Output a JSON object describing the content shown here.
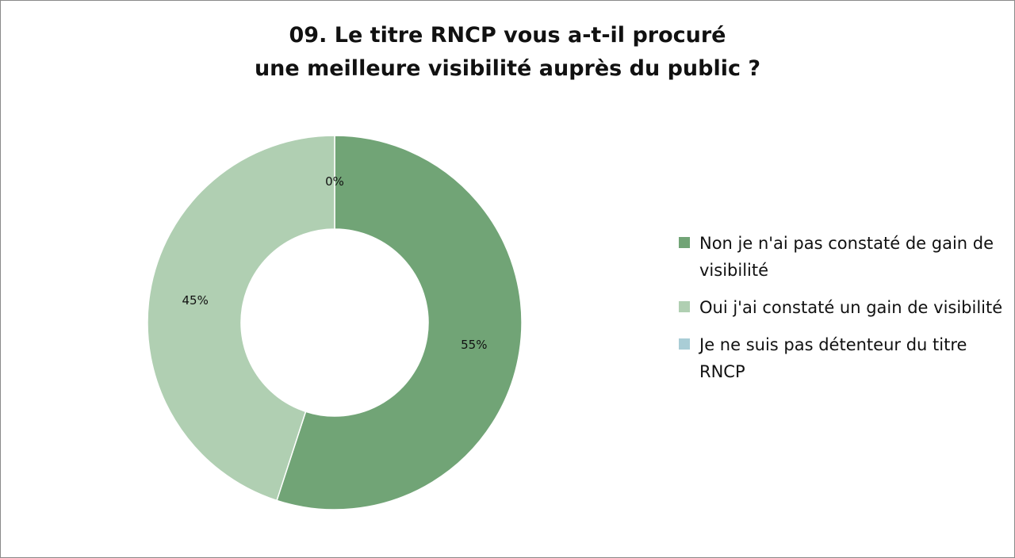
{
  "chart_data": {
    "type": "pie",
    "variant": "donut",
    "title": "09. Le titre RNCP vous a-t-il procuré une meilleure visibilité auprès du public ?",
    "title_lines": [
      "09. Le titre RNCP vous a-t-il procuré",
      "une meilleure visibilité auprès du public ?"
    ],
    "legend_position": "right",
    "slices": [
      {
        "label": "Non je n'ai pas constaté de gain de visibilité",
        "value": 55,
        "display": "55%",
        "color": "#71a476"
      },
      {
        "label": "Oui j'ai constaté un gain de visibilité",
        "value": 45,
        "display": "45%",
        "color": "#b0cfb2"
      },
      {
        "label": "Je ne suis pas détenteur du titre RNCP",
        "value": 0,
        "display": "0%",
        "color": "#a9cdd6"
      }
    ]
  }
}
